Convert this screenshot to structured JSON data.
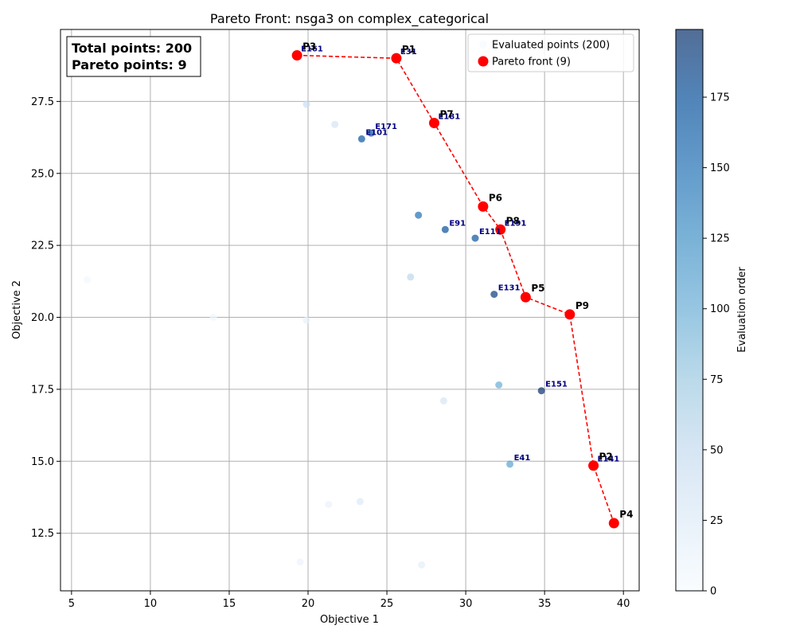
{
  "chart_data": {
    "type": "scatter",
    "title": "Pareto Front: nsga3 on complex_categorical",
    "xlabel": "Objective 1",
    "ylabel": "Objective 2",
    "xlim": [
      4.3,
      41.0
    ],
    "ylim": [
      10.5,
      30.0
    ],
    "xticks": [
      "5",
      "10",
      "15",
      "20",
      "25",
      "30",
      "35",
      "40"
    ],
    "yticks": [
      "12.5",
      "15.0",
      "17.5",
      "20.0",
      "22.5",
      "25.0",
      "27.5"
    ],
    "grid": true,
    "legend_position": "top-right",
    "colorbar": {
      "label": "Evaluation order",
      "range": [
        0,
        199
      ],
      "ticks": [
        "0",
        "25",
        "50",
        "75",
        "100",
        "125",
        "150",
        "175"
      ],
      "colormap": "Blues"
    },
    "stats_box": {
      "line1": "Total points: 200",
      "line2": "Pareto points: 9"
    },
    "series": [
      {
        "name": "Evaluated points (200)",
        "kind": "scatter",
        "points": [
          {
            "x": 6.0,
            "y": 21.3,
            "order": 5
          },
          {
            "x": 14.0,
            "y": 20.0,
            "order": 8
          },
          {
            "x": 19.5,
            "y": 11.5,
            "order": 12
          },
          {
            "x": 19.9,
            "y": 19.9,
            "order": 15
          },
          {
            "x": 21.3,
            "y": 13.5,
            "order": 14
          },
          {
            "x": 27.2,
            "y": 11.4,
            "order": 20
          },
          {
            "x": 23.3,
            "y": 13.6,
            "order": 28
          },
          {
            "x": 28.6,
            "y": 17.1,
            "order": 32
          },
          {
            "x": 21.7,
            "y": 26.7,
            "order": 35
          },
          {
            "x": 19.9,
            "y": 27.4,
            "order": 45
          },
          {
            "x": 26.5,
            "y": 21.4,
            "order": 55
          },
          {
            "x": 25.6,
            "y": 29.0,
            "order": 31,
            "label": "E31"
          },
          {
            "x": 32.8,
            "y": 14.9,
            "order": 110,
            "label": "E41"
          },
          {
            "x": 28.7,
            "y": 23.05,
            "order": 175,
            "label": "E91"
          },
          {
            "x": 23.4,
            "y": 26.2,
            "order": 170,
            "label": "E101"
          },
          {
            "x": 30.6,
            "y": 22.75,
            "order": 172,
            "label": "E111"
          },
          {
            "x": 31.8,
            "y": 20.8,
            "order": 190,
            "label": "E131"
          },
          {
            "x": 38.1,
            "y": 14.85,
            "order": 141,
            "label": "E141"
          },
          {
            "x": 34.8,
            "y": 17.45,
            "order": 198,
            "label": "E151"
          },
          {
            "x": 19.3,
            "y": 29.1,
            "order": 161,
            "label": "E161"
          },
          {
            "x": 24.0,
            "y": 26.4,
            "order": 171,
            "label": "E171"
          },
          {
            "x": 28.0,
            "y": 26.75,
            "order": 181,
            "label": "E181"
          },
          {
            "x": 32.2,
            "y": 23.05,
            "order": 191,
            "label": "E191"
          },
          {
            "x": 27.0,
            "y": 23.55,
            "order": 150
          },
          {
            "x": 32.1,
            "y": 17.65,
            "order": 100
          }
        ]
      },
      {
        "name": "Pareto front (9)",
        "kind": "pareto",
        "color": "#ff0000",
        "points": [
          {
            "x": 19.3,
            "y": 29.1,
            "label": "P3"
          },
          {
            "x": 25.6,
            "y": 29.0,
            "label": "P1"
          },
          {
            "x": 28.0,
            "y": 26.75,
            "label": "P7"
          },
          {
            "x": 31.1,
            "y": 23.85,
            "label": "P6"
          },
          {
            "x": 32.2,
            "y": 23.05,
            "label": "P8"
          },
          {
            "x": 33.8,
            "y": 20.7,
            "label": "P5"
          },
          {
            "x": 36.6,
            "y": 20.1,
            "label": "P9"
          },
          {
            "x": 38.1,
            "y": 14.85,
            "label": "P2"
          },
          {
            "x": 39.4,
            "y": 12.85,
            "label": "P4"
          }
        ]
      }
    ]
  }
}
